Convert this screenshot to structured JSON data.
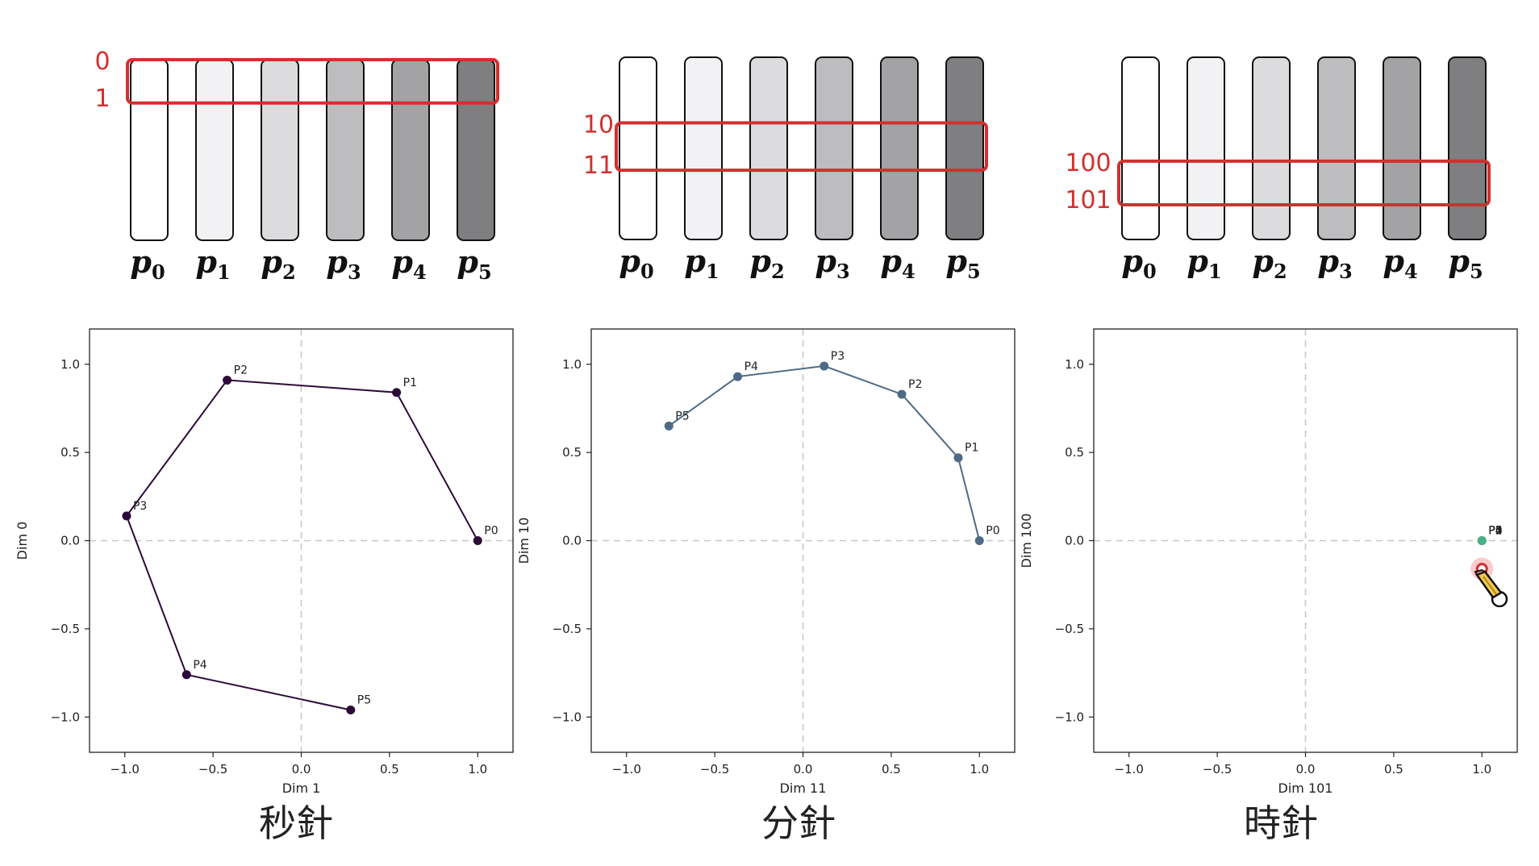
{
  "colors": {
    "highlight": "#d32f2f",
    "plot1_line": "#2e0a3a",
    "plot2_line": "#4d6b86",
    "plot3_point": "#4caf88",
    "grid": "#c8c8c8",
    "bar_fills": [
      "#ffffff",
      "#f2f1f4",
      "#dcdbde",
      "#bdbcbf",
      "#a3a2a5",
      "#7f7e80"
    ]
  },
  "panels": [
    {
      "bar_labels": [
        "p",
        "p",
        "p",
        "p",
        "p",
        "p"
      ],
      "bar_subscripts": [
        "0",
        "1",
        "2",
        "3",
        "4",
        "5"
      ],
      "highlight_labels": [
        "0",
        "1"
      ],
      "highlight_fraction": [
        0.0,
        0.24
      ],
      "caption": "秒針"
    },
    {
      "bar_labels": [
        "p",
        "p",
        "p",
        "p",
        "p",
        "p"
      ],
      "bar_subscripts": [
        "0",
        "1",
        "2",
        "3",
        "4",
        "5"
      ],
      "highlight_labels": [
        "10",
        "11"
      ],
      "highlight_fraction": [
        0.36,
        0.62
      ],
      "caption": "分針"
    },
    {
      "bar_labels": [
        "p",
        "p",
        "p",
        "p",
        "p",
        "p"
      ],
      "bar_subscripts": [
        "0",
        "1",
        "2",
        "3",
        "4",
        "5"
      ],
      "highlight_labels": [
        "100",
        "101"
      ],
      "highlight_fraction": [
        0.57,
        0.81
      ],
      "caption": "時針"
    }
  ],
  "chart_data": [
    {
      "type": "line",
      "xlabel": "Dim 1",
      "ylabel": "Dim 0",
      "xlim": [
        -1.2,
        1.2
      ],
      "ylim": [
        -1.2,
        1.2
      ],
      "xticks": [
        "−1.0",
        "−0.5",
        "0.0",
        "0.5",
        "1.0"
      ],
      "yticks": [
        "−1.0",
        "−0.5",
        "0.0",
        "0.5",
        "1.0"
      ],
      "grid": "dashed zero lines",
      "points": [
        {
          "label": "P0",
          "x": 1.0,
          "y": 0.0
        },
        {
          "label": "P1",
          "x": 0.54,
          "y": 0.84
        },
        {
          "label": "P2",
          "x": -0.42,
          "y": 0.91
        },
        {
          "label": "P3",
          "x": -0.99,
          "y": 0.14
        },
        {
          "label": "P4",
          "x": -0.65,
          "y": -0.76
        },
        {
          "label": "P5",
          "x": 0.28,
          "y": -0.96
        }
      ]
    },
    {
      "type": "line",
      "xlabel": "Dim 11",
      "ylabel": "Dim 10",
      "xlim": [
        -1.2,
        1.2
      ],
      "ylim": [
        -1.2,
        1.2
      ],
      "xticks": [
        "−1.0",
        "−0.5",
        "0.0",
        "0.5",
        "1.0"
      ],
      "yticks": [
        "−1.0",
        "−0.5",
        "0.0",
        "0.5",
        "1.0"
      ],
      "grid": "dashed zero lines",
      "points": [
        {
          "label": "P0",
          "x": 1.0,
          "y": 0.0
        },
        {
          "label": "P1",
          "x": 0.88,
          "y": 0.47
        },
        {
          "label": "P2",
          "x": 0.56,
          "y": 0.83
        },
        {
          "label": "P3",
          "x": 0.12,
          "y": 0.99
        },
        {
          "label": "P4",
          "x": -0.37,
          "y": 0.93
        },
        {
          "label": "P5",
          "x": -0.76,
          "y": 0.65
        }
      ]
    },
    {
      "type": "scatter",
      "xlabel": "Dim 101",
      "ylabel": "Dim 100",
      "xlim": [
        -1.2,
        1.2
      ],
      "ylim": [
        -1.2,
        1.2
      ],
      "xticks": [
        "−1.0",
        "−0.5",
        "0.0",
        "0.5",
        "1.0"
      ],
      "yticks": [
        "−1.0",
        "−0.5",
        "0.0",
        "0.5",
        "1.0"
      ],
      "grid": "dashed zero lines",
      "points": [
        {
          "label": "P0",
          "x": 1.0,
          "y": 0.0
        },
        {
          "label": "P1",
          "x": 1.0,
          "y": 0.0
        },
        {
          "label": "P2",
          "x": 1.0,
          "y": 0.0
        },
        {
          "label": "P3",
          "x": 1.0,
          "y": 0.0
        },
        {
          "label": "P4",
          "x": 1.0,
          "y": 0.0
        },
        {
          "label": "P5",
          "x": 1.0,
          "y": 0.0
        }
      ],
      "annotation_point": {
        "x": 1.0,
        "y": -0.16
      }
    }
  ]
}
